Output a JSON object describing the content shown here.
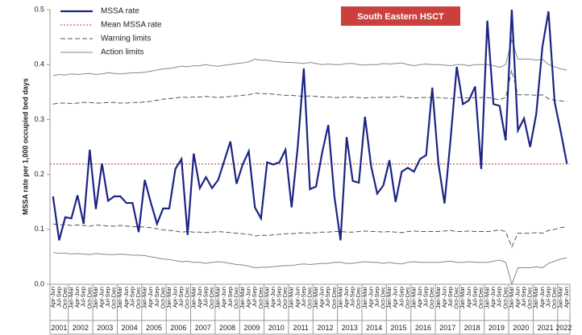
{
  "chart_data": {
    "type": "control",
    "badge": "South Eastern HSCT",
    "badge_color": "#c9403c",
    "y_label": "MSSA rate per 1,000 occupied bed days",
    "ylim": [
      0,
      0.5
    ],
    "yticks": [
      {
        "value": 0,
        "label": "0.0"
      },
      {
        "value": 0.1,
        "label": "0.1"
      },
      {
        "value": 0.2,
        "label": "0.2"
      },
      {
        "value": 0.3,
        "label": "0.3"
      },
      {
        "value": 0.4,
        "label": "0.4"
      },
      {
        "value": 0.5,
        "label": "0.5"
      }
    ],
    "categories": [
      "Apr-Jun",
      "Jul-Sep",
      "Oct-Dec",
      "Jan-Mar",
      "Apr-Jun",
      "Jul-Sep",
      "Oct-Dec",
      "Jan-Mar",
      "Apr-Jun",
      "Jul-Sep",
      "Oct-Dec",
      "Jan-Mar",
      "Apr-Jun",
      "Jul-Sep",
      "Oct-Dec",
      "Jan-Mar",
      "Apr-Jun",
      "Jul-Sep",
      "Oct-Dec",
      "Jan-Mar",
      "Apr-Jun",
      "Jul-Sep",
      "Oct-Dec",
      "Jan-Mar",
      "Apr-Jun",
      "Jul-Sep",
      "Oct-Dec",
      "Jan-Mar",
      "Apr-Jun",
      "Jul-Sep",
      "Oct-Dec",
      "Jan-Mar",
      "Apr-Jun",
      "Jul-Sep",
      "Oct-Dec",
      "Jan-Mar",
      "Apr-Jun",
      "Jul-Sep",
      "Oct-Dec",
      "Jan-Mar",
      "Apr-Jun",
      "Jul-Sep",
      "Oct-Dec",
      "Jan-Mar",
      "Apr-Jun",
      "Jul-Sep",
      "Oct-Dec",
      "Jan-Mar",
      "Apr-Jun",
      "Jul-Sep",
      "Oct-Dec",
      "Jan-Mar",
      "Apr-Jun",
      "Jul-Sep",
      "Oct-Dec",
      "Jan-Mar",
      "Apr-Jun",
      "Jul-Sep",
      "Oct-Dec",
      "Jan-Mar",
      "Apr-Jun",
      "Jul-Sep",
      "Oct-Dec",
      "Jan-Mar",
      "Apr-Jun",
      "Jul-Sep",
      "Oct-Dec",
      "Jan-Mar",
      "Apr-Jun",
      "Jul-Sep",
      "Oct-Dec",
      "Jan-Mar",
      "Apr-Jun",
      "Jul-Sep",
      "Oct-Dec",
      "Jan-Mar",
      "Apr-Jun",
      "Jul-Sep",
      "Oct-Dec",
      "Jan-Mar",
      "Apr-Jun",
      "Jul-Sep",
      "Oct-Dec",
      "Jan-Mar",
      "Apr-Jun"
    ],
    "years": [
      "2001",
      "2002",
      "2003",
      "2004",
      "2005",
      "2006",
      "2007",
      "2008",
      "2009",
      "2010",
      "2011",
      "2012",
      "2013",
      "2014",
      "2015",
      "2016",
      "2017",
      "2018",
      "2019",
      "2020",
      "2021",
      "2022"
    ],
    "series": [
      {
        "name": "MSSA rate",
        "color": "#1c2484",
        "values": [
          0.16,
          0.08,
          0.122,
          0.12,
          0.162,
          0.11,
          0.245,
          0.137,
          0.22,
          0.152,
          0.16,
          0.16,
          0.148,
          0.148,
          0.095,
          0.19,
          0.148,
          0.11,
          0.138,
          0.138,
          0.21,
          0.228,
          0.09,
          0.238,
          0.175,
          0.195,
          0.175,
          0.19,
          0.225,
          0.26,
          0.183,
          0.218,
          0.242,
          0.14,
          0.12,
          0.222,
          0.218,
          0.222,
          0.245,
          0.14,
          0.25,
          0.393,
          0.173,
          0.178,
          0.24,
          0.29,
          0.16,
          0.08,
          0.268,
          0.188,
          0.185,
          0.305,
          0.215,
          0.165,
          0.18,
          0.226,
          0.15,
          0.205,
          0.212,
          0.205,
          0.228,
          0.235,
          0.358,
          0.22,
          0.147,
          0.265,
          0.396,
          0.328,
          0.335,
          0.36,
          0.21,
          0.48,
          0.328,
          0.325,
          0.262,
          0.5,
          0.28,
          0.302,
          0.25,
          0.31,
          0.432,
          0.497,
          0.332,
          0.278,
          0.22
        ]
      }
    ],
    "mean": {
      "name": "Mean MSSA rate",
      "color": "#c0392b",
      "value": 0.219
    },
    "limits": [
      {
        "name": "Warning limits",
        "color": "#555555",
        "dashed": true,
        "upper": [
          0.328,
          0.33,
          0.33,
          0.329,
          0.33,
          0.331,
          0.331,
          0.33,
          0.33,
          0.331,
          0.331,
          0.33,
          0.33,
          0.331,
          0.331,
          0.332,
          0.333,
          0.335,
          0.337,
          0.338,
          0.339,
          0.341,
          0.34,
          0.341,
          0.341,
          0.342,
          0.341,
          0.34,
          0.341,
          0.342,
          0.343,
          0.344,
          0.345,
          0.348,
          0.347,
          0.347,
          0.346,
          0.345,
          0.344,
          0.344,
          0.343,
          0.342,
          0.343,
          0.342,
          0.341,
          0.341,
          0.34,
          0.34,
          0.341,
          0.341,
          0.34,
          0.339,
          0.34,
          0.34,
          0.341,
          0.34,
          0.341,
          0.342,
          0.34,
          0.339,
          0.34,
          0.34,
          0.34,
          0.34,
          0.339,
          0.338,
          0.34,
          0.34,
          0.339,
          0.34,
          0.34,
          0.34,
          0.338,
          0.336,
          0.34,
          0.39,
          0.345,
          0.345,
          0.345,
          0.344,
          0.345,
          0.338,
          0.335,
          0.334,
          0.333
        ],
        "lower": [
          0.11,
          0.108,
          0.109,
          0.107,
          0.108,
          0.107,
          0.106,
          0.108,
          0.107,
          0.106,
          0.106,
          0.107,
          0.106,
          0.105,
          0.105,
          0.104,
          0.103,
          0.101,
          0.099,
          0.098,
          0.097,
          0.095,
          0.096,
          0.095,
          0.095,
          0.094,
          0.095,
          0.096,
          0.095,
          0.094,
          0.093,
          0.092,
          0.091,
          0.088,
          0.089,
          0.089,
          0.09,
          0.091,
          0.092,
          0.092,
          0.093,
          0.094,
          0.093,
          0.094,
          0.095,
          0.095,
          0.096,
          0.096,
          0.095,
          0.095,
          0.096,
          0.097,
          0.096,
          0.096,
          0.095,
          0.096,
          0.095,
          0.094,
          0.096,
          0.097,
          0.096,
          0.096,
          0.096,
          0.096,
          0.097,
          0.098,
          0.096,
          0.096,
          0.097,
          0.096,
          0.096,
          0.096,
          0.097,
          0.099,
          0.096,
          0.068,
          0.093,
          0.093,
          0.093,
          0.094,
          0.093,
          0.098,
          0.1,
          0.103,
          0.105
        ]
      },
      {
        "name": "Action limits",
        "color": "#888888",
        "dashed": false,
        "upper": [
          0.38,
          0.382,
          0.381,
          0.383,
          0.382,
          0.383,
          0.384,
          0.382,
          0.383,
          0.385,
          0.384,
          0.383,
          0.384,
          0.385,
          0.385,
          0.386,
          0.388,
          0.39,
          0.392,
          0.393,
          0.395,
          0.397,
          0.396,
          0.398,
          0.398,
          0.4,
          0.398,
          0.397,
          0.399,
          0.4,
          0.402,
          0.403,
          0.405,
          0.41,
          0.408,
          0.408,
          0.406,
          0.405,
          0.404,
          0.404,
          0.403,
          0.402,
          0.404,
          0.402,
          0.4,
          0.401,
          0.4,
          0.4,
          0.402,
          0.402,
          0.4,
          0.399,
          0.4,
          0.4,
          0.402,
          0.401,
          0.402,
          0.403,
          0.4,
          0.398,
          0.4,
          0.401,
          0.4,
          0.4,
          0.399,
          0.398,
          0.4,
          0.4,
          0.398,
          0.4,
          0.4,
          0.4,
          0.398,
          0.395,
          0.4,
          0.445,
          0.41,
          0.41,
          0.41,
          0.408,
          0.41,
          0.4,
          0.396,
          0.392,
          0.39
        ],
        "lower": [
          0.058,
          0.056,
          0.057,
          0.055,
          0.056,
          0.055,
          0.054,
          0.056,
          0.055,
          0.054,
          0.054,
          0.055,
          0.054,
          0.053,
          0.053,
          0.052,
          0.05,
          0.048,
          0.046,
          0.045,
          0.043,
          0.041,
          0.042,
          0.04,
          0.04,
          0.038,
          0.04,
          0.041,
          0.04,
          0.038,
          0.036,
          0.035,
          0.033,
          0.03,
          0.031,
          0.031,
          0.032,
          0.033,
          0.034,
          0.034,
          0.036,
          0.037,
          0.036,
          0.037,
          0.038,
          0.038,
          0.04,
          0.04,
          0.038,
          0.038,
          0.04,
          0.041,
          0.04,
          0.04,
          0.038,
          0.04,
          0.038,
          0.037,
          0.04,
          0.041,
          0.04,
          0.04,
          0.04,
          0.04,
          0.041,
          0.042,
          0.04,
          0.04,
          0.041,
          0.04,
          0.04,
          0.04,
          0.042,
          0.044,
          0.04,
          0.0,
          0.03,
          0.03,
          0.03,
          0.032,
          0.03,
          0.038,
          0.042,
          0.046,
          0.048
        ]
      }
    ]
  }
}
